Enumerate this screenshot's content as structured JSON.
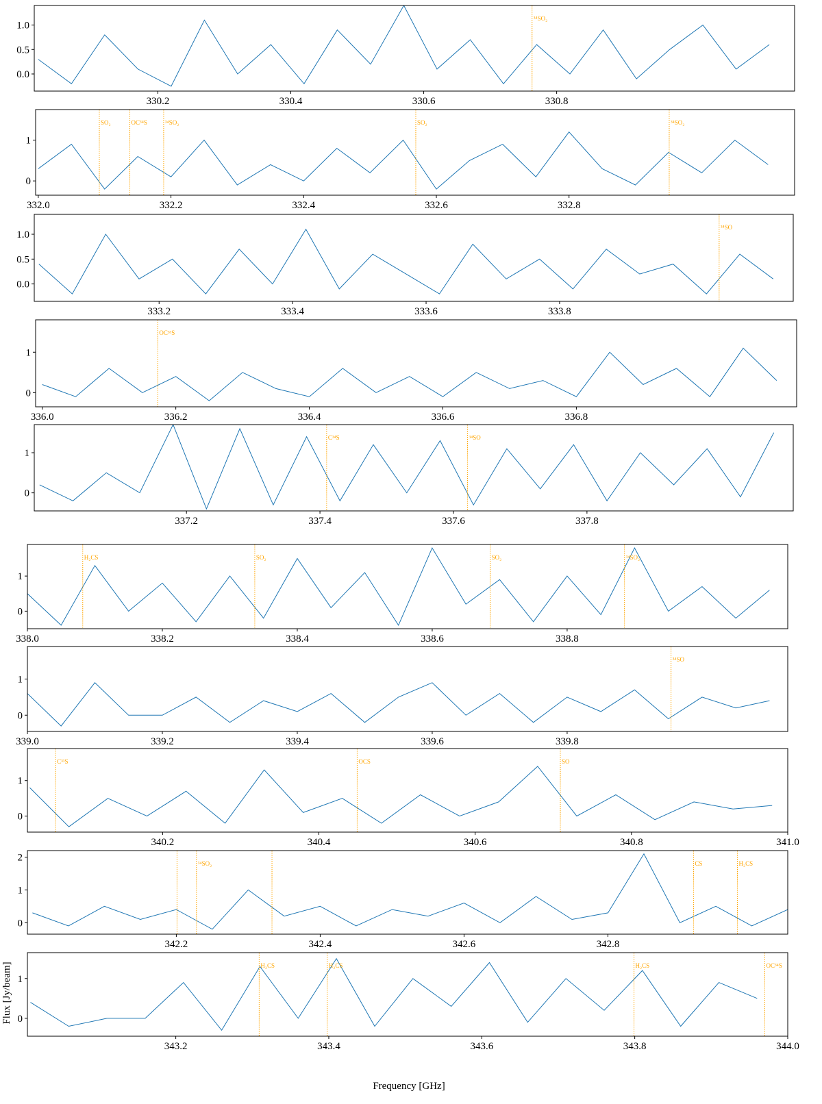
{
  "xlabel": "Frequency [GHz]",
  "ylabel": "Flux [Jy/beam]",
  "chart_data": [
    {
      "type": "line",
      "xlim": [
        330.014,
        331.158
      ],
      "ylim": [
        -0.35,
        1.4
      ],
      "xticks": [
        330.2,
        330.4,
        330.6,
        330.8
      ],
      "yticks": [
        {
          "value": 0,
          "label": "0.0"
        },
        {
          "value": 0.5,
          "label": "0.5"
        },
        {
          "value": 1,
          "label": "1.0"
        }
      ],
      "x": [
        330.02,
        330.07,
        330.12,
        330.17,
        330.22,
        330.27,
        330.32,
        330.37,
        330.42,
        330.47,
        330.52,
        330.57,
        330.62,
        330.67,
        330.72,
        330.77,
        330.82,
        330.87,
        330.92,
        330.97,
        331.02,
        331.07,
        331.12
      ],
      "series": [
        {
          "color": "#1f77b4",
          "values": [
            0.3,
            -0.2,
            0.8,
            0.1,
            -0.25,
            1.1,
            0.0,
            0.6,
            -0.2,
            0.9,
            0.2,
            1.4,
            0.1,
            0.7,
            -0.2,
            0.6,
            0.0,
            0.9,
            -0.1,
            0.5,
            1.0,
            0.1,
            0.6
          ]
        }
      ],
      "line_color": "orange",
      "lines": [
        {
          "x": 330.763,
          "label": "³⁴SO₂"
        }
      ]
    },
    {
      "type": "line",
      "xlim": [
        331.996,
        333.14
      ],
      "ylim": [
        -0.35,
        1.75
      ],
      "xticks": [
        {
          "value": 332,
          "label": "332.0"
        },
        332.2,
        332.4,
        332.6,
        332.8
      ],
      "yticks": [
        0,
        1
      ],
      "x": [
        332.0,
        332.05,
        332.1,
        332.15,
        332.2,
        332.25,
        332.3,
        332.35,
        332.4,
        332.45,
        332.5,
        332.55,
        332.6,
        332.65,
        332.7,
        332.75,
        332.8,
        332.85,
        332.9,
        332.95,
        333.0,
        333.05,
        333.1
      ],
      "series": [
        {
          "color": "#1f77b4",
          "values": [
            0.3,
            0.9,
            -0.2,
            0.6,
            0.1,
            1.0,
            -0.1,
            0.4,
            0.0,
            0.8,
            0.2,
            1.0,
            -0.2,
            0.5,
            0.9,
            0.1,
            1.2,
            0.3,
            -0.1,
            0.7,
            0.2,
            1.0,
            0.4
          ]
        }
      ],
      "line_color": "orange",
      "lines": [
        {
          "x": 332.092,
          "label": "SO₂"
        },
        {
          "x": 332.138,
          "label": "OC³⁴S"
        },
        {
          "x": 332.189,
          "label": "³⁴SO₂"
        },
        {
          "x": 332.569,
          "label": "SO₂"
        },
        {
          "x": 332.951,
          "label": "³⁴SO₂"
        }
      ]
    },
    {
      "type": "line",
      "xlim": [
        333.013,
        334.15
      ],
      "ylim": [
        -0.35,
        1.4
      ],
      "xticks": [
        333.2,
        333.4,
        333.6,
        333.8
      ],
      "yticks": [
        {
          "value": 0,
          "label": "0.0"
        },
        {
          "value": 0.5,
          "label": "0.5"
        },
        {
          "value": 1,
          "label": "1.0"
        }
      ],
      "x": [
        333.02,
        333.07,
        333.12,
        333.17,
        333.22,
        333.27,
        333.32,
        333.37,
        333.42,
        333.47,
        333.52,
        333.57,
        333.62,
        333.67,
        333.72,
        333.77,
        333.82,
        333.87,
        333.92,
        333.97,
        334.02,
        334.07,
        334.12
      ],
      "series": [
        {
          "color": "#1f77b4",
          "values": [
            0.4,
            -0.2,
            1.0,
            0.1,
            0.5,
            -0.2,
            0.7,
            0.0,
            1.1,
            -0.1,
            0.6,
            0.2,
            -0.2,
            0.8,
            0.1,
            0.5,
            -0.1,
            0.7,
            0.2,
            0.4,
            -0.2,
            0.6,
            0.1
          ]
        }
      ],
      "line_color": "orange",
      "lines": [
        {
          "x": 334.039,
          "label": "³⁴SO"
        }
      ]
    },
    {
      "type": "line",
      "xlim": [
        335.99,
        337.13
      ],
      "ylim": [
        -0.35,
        1.8
      ],
      "xticks": [
        {
          "value": 336,
          "label": "336.0"
        },
        336.2,
        336.4,
        336.6,
        336.8
      ],
      "yticks": [
        0,
        1
      ],
      "x": [
        336.0,
        336.05,
        336.1,
        336.15,
        336.2,
        336.25,
        336.3,
        336.35,
        336.4,
        336.45,
        336.5,
        336.55,
        336.6,
        336.65,
        336.7,
        336.75,
        336.8,
        336.85,
        336.9,
        336.95,
        337.0,
        337.05,
        337.1
      ],
      "series": [
        {
          "color": "#1f77b4",
          "values": [
            0.2,
            -0.1,
            0.6,
            0.0,
            0.4,
            -0.2,
            0.5,
            0.1,
            -0.1,
            0.6,
            0.0,
            0.4,
            -0.1,
            0.5,
            0.1,
            0.3,
            -0.1,
            1.0,
            0.2,
            0.6,
            -0.1,
            1.1,
            0.3
          ]
        }
      ],
      "line_color": "orange",
      "lines": [
        {
          "x": 336.173,
          "label": "OC³³S"
        }
      ]
    },
    {
      "type": "line",
      "xlim": [
        336.972,
        338.109
      ],
      "ylim": [
        -0.45,
        1.7
      ],
      "xticks": [
        337.2,
        337.4,
        337.6,
        337.8
      ],
      "yticks": [
        0,
        1
      ],
      "x": [
        336.98,
        337.03,
        337.08,
        337.13,
        337.18,
        337.23,
        337.28,
        337.33,
        337.38,
        337.43,
        337.48,
        337.53,
        337.58,
        337.63,
        337.68,
        337.73,
        337.78,
        337.83,
        337.88,
        337.93,
        337.98,
        338.03,
        338.08
      ],
      "series": [
        {
          "color": "#1f77b4",
          "values": [
            0.2,
            -0.2,
            0.5,
            0.0,
            1.7,
            -0.4,
            1.6,
            -0.3,
            1.4,
            -0.2,
            1.2,
            0.0,
            1.3,
            -0.3,
            1.1,
            0.1,
            1.2,
            -0.2,
            1.0,
            0.2,
            1.1,
            -0.1,
            1.5
          ]
        }
      ],
      "line_color": "orange",
      "lines": [
        {
          "x": 337.41,
          "label": "C³⁴S"
        },
        {
          "x": 337.621,
          "label": "³⁴SO"
        }
      ]
    },
    {
      "type": "line",
      "xlim": [
        338.0,
        339.127
      ],
      "ylim": [
        -0.5,
        1.9
      ],
      "xticks": [
        {
          "value": 338,
          "label": "338.0"
        },
        338.2,
        338.4,
        338.6,
        338.8
      ],
      "yticks": [
        0,
        1
      ],
      "x": [
        338.0,
        338.05,
        338.1,
        338.15,
        338.2,
        338.25,
        338.3,
        338.35,
        338.4,
        338.45,
        338.5,
        338.55,
        338.6,
        338.65,
        338.7,
        338.75,
        338.8,
        338.85,
        338.9,
        338.95,
        339.0,
        339.05,
        339.1
      ],
      "series": [
        {
          "color": "#1f77b4",
          "values": [
            0.5,
            -0.4,
            1.3,
            0.0,
            0.8,
            -0.3,
            1.0,
            -0.2,
            1.5,
            0.1,
            1.1,
            -0.4,
            1.8,
            0.2,
            0.9,
            -0.3,
            1.0,
            -0.1,
            1.8,
            0.0,
            0.7,
            -0.2,
            0.6
          ]
        }
      ],
      "line_color": "orange",
      "lines": [
        {
          "x": 338.082,
          "label": "H₂CS"
        },
        {
          "x": 338.337,
          "label": "SO₂"
        },
        {
          "x": 338.686,
          "label": "SO₂"
        },
        {
          "x": 338.885,
          "label": "³⁴SO₂"
        }
      ]
    },
    {
      "type": "line",
      "xlim": [
        339.0,
        340.127
      ],
      "ylim": [
        -0.45,
        1.9
      ],
      "xticks": [
        {
          "value": 339,
          "label": "339.0"
        },
        339.2,
        339.4,
        339.6,
        339.8
      ],
      "yticks": [
        0,
        1
      ],
      "x": [
        339.0,
        339.05,
        339.1,
        339.15,
        339.2,
        339.25,
        339.3,
        339.35,
        339.4,
        339.45,
        339.5,
        339.55,
        339.6,
        339.65,
        339.7,
        339.75,
        339.8,
        339.85,
        339.9,
        339.95,
        340.0,
        340.05,
        340.1
      ],
      "series": [
        {
          "color": "#1f77b4",
          "values": [
            0.6,
            -0.3,
            0.9,
            0.0,
            0.0,
            0.5,
            -0.2,
            0.4,
            0.1,
            0.6,
            -0.2,
            0.5,
            0.9,
            0.0,
            0.6,
            -0.2,
            0.5,
            0.1,
            0.7,
            -0.1,
            0.5,
            0.2,
            0.4
          ]
        }
      ],
      "line_color": "orange",
      "lines": [
        {
          "x": 339.954,
          "label": "³⁴SO"
        }
      ]
    },
    {
      "type": "line",
      "xlim": [
        340.027,
        341.0
      ],
      "ylim": [
        -0.45,
        1.9
      ],
      "xticks": [
        340.2,
        340.4,
        340.6,
        340.8,
        {
          "value": 341,
          "label": "341.0"
        }
      ],
      "yticks": [
        0,
        1
      ],
      "x": [
        340.03,
        340.08,
        340.13,
        340.18,
        340.23,
        340.28,
        340.33,
        340.38,
        340.43,
        340.48,
        340.53,
        340.58,
        340.63,
        340.68,
        340.73,
        340.78,
        340.83,
        340.88,
        340.93,
        340.98
      ],
      "series": [
        {
          "color": "#1f77b4",
          "values": [
            0.8,
            -0.3,
            0.5,
            0.0,
            0.7,
            -0.2,
            1.3,
            0.1,
            0.5,
            -0.2,
            0.6,
            0.0,
            0.4,
            1.4,
            0.0,
            0.6,
            -0.1,
            0.4,
            0.2,
            0.3
          ]
        }
      ],
      "line_color": "orange",
      "lines": [
        {
          "x": 340.063,
          "label": "C³³S"
        },
        {
          "x": 340.449,
          "label": "OCS"
        },
        {
          "x": 340.709,
          "label": "SO"
        }
      ]
    },
    {
      "type": "line",
      "xlim": [
        341.993,
        343.05
      ],
      "ylim": [
        -0.35,
        2.2
      ],
      "xticks": [
        342.2,
        342.4,
        342.6,
        342.8
      ],
      "yticks": [
        0,
        1,
        2
      ],
      "x": [
        342.0,
        342.05,
        342.1,
        342.15,
        342.2,
        342.25,
        342.3,
        342.35,
        342.4,
        342.45,
        342.5,
        342.55,
        342.6,
        342.65,
        342.7,
        342.75,
        342.8,
        342.85,
        342.9,
        342.95,
        343.0,
        343.05
      ],
      "series": [
        {
          "color": "#1f77b4",
          "values": [
            0.3,
            -0.1,
            0.5,
            0.1,
            0.4,
            -0.2,
            1.0,
            0.2,
            0.5,
            -0.1,
            0.4,
            0.2,
            0.6,
            0.0,
            0.8,
            0.1,
            0.3,
            2.1,
            0.0,
            0.5,
            -0.1,
            0.4
          ]
        }
      ],
      "line_color": "orange",
      "lines": [
        {
          "x": 342.201,
          "label": null
        },
        {
          "x": 342.228,
          "label": "³⁴SO₂"
        },
        {
          "x": 342.333,
          "label": null
        },
        {
          "x": 342.919,
          "label": "CS"
        },
        {
          "x": 342.98,
          "label": "H₂CS"
        }
      ]
    },
    {
      "type": "line",
      "xlim": [
        343.006,
        344.0
      ],
      "ylim": [
        -0.45,
        1.65
      ],
      "xticks": [
        343.2,
        343.4,
        343.6,
        343.8,
        {
          "value": 344,
          "label": "344.0"
        }
      ],
      "yticks": [
        0,
        1
      ],
      "x": [
        343.01,
        343.06,
        343.11,
        343.16,
        343.21,
        343.26,
        343.31,
        343.36,
        343.41,
        343.46,
        343.51,
        343.56,
        343.61,
        343.66,
        343.71,
        343.76,
        343.81,
        343.86,
        343.91,
        343.96
      ],
      "series": [
        {
          "color": "#1f77b4",
          "values": [
            0.4,
            -0.2,
            0.0,
            0.0,
            0.9,
            -0.3,
            1.3,
            0.0,
            1.5,
            -0.2,
            1.0,
            0.3,
            1.4,
            -0.1,
            1.0,
            0.2,
            1.2,
            -0.2,
            0.9,
            0.5
          ]
        }
      ],
      "line_color": "orange",
      "lines": [
        {
          "x": 343.309,
          "label": "H₂CS"
        },
        {
          "x": 343.398,
          "label": "H₂CS"
        },
        {
          "x": 343.799,
          "label": "H₂CS"
        },
        {
          "x": 343.97,
          "label": "OC³⁴S"
        }
      ]
    }
  ]
}
